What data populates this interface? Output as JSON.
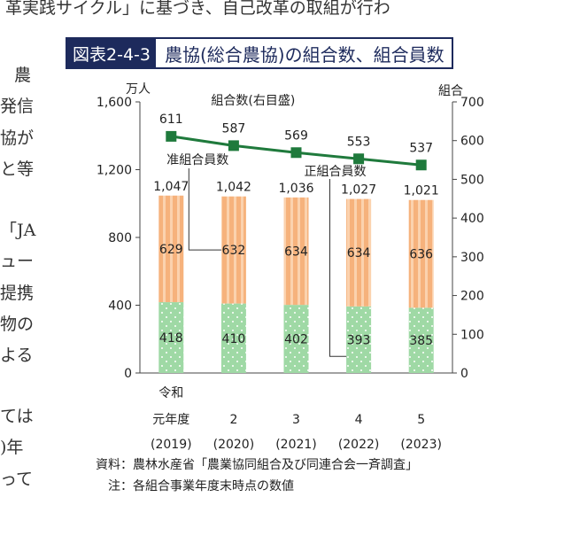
{
  "background_text": {
    "top_line": "革実践サイクル」に基づき、自己改革の取組が行わ",
    "left_fragments": [
      "農",
      "発信",
      "協が",
      "と等",
      "「JA",
      "ュー",
      "提携",
      "物の",
      "よる",
      "ては",
      ")年",
      "って"
    ]
  },
  "figure": {
    "label": "図表2-4-3",
    "title": "農協(総合農協)の組合数、組合員数"
  },
  "chart_data": {
    "type": "bar",
    "categories": [
      {
        "line1": "令和",
        "line2": "元年度",
        "line3": "(2019)"
      },
      {
        "line1": "",
        "line2": "2",
        "line3": "(2020)"
      },
      {
        "line1": "",
        "line2": "3",
        "line3": "(2021)"
      },
      {
        "line1": "",
        "line2": "4",
        "line3": "(2022)"
      },
      {
        "line1": "",
        "line2": "5",
        "line3": "(2023)"
      }
    ],
    "series": [
      {
        "name": "正組合員数",
        "kind": "stacked-bar",
        "color": "#9fd9a5",
        "pattern": "dots",
        "values": [
          418,
          410,
          402,
          393,
          385
        ]
      },
      {
        "name": "准組合員数",
        "kind": "stacked-bar",
        "color": "#f6b27c",
        "pattern": "stripes",
        "values": [
          629,
          632,
          634,
          634,
          636
        ]
      },
      {
        "name": "組合数(右目盛)",
        "kind": "line",
        "axis": "right",
        "color": "#1f7a3c",
        "values": [
          611,
          587,
          569,
          553,
          537
        ]
      }
    ],
    "totals": [
      1047,
      1042,
      1036,
      1027,
      1021
    ],
    "left_axis": {
      "unit": "万人",
      "ylim": [
        0,
        1600
      ],
      "ticks": [
        0,
        400,
        800,
        1200,
        1600
      ]
    },
    "right_axis": {
      "unit": "組合",
      "ylim": [
        0,
        700
      ],
      "ticks": [
        0,
        100,
        200,
        300,
        400,
        500,
        600,
        700
      ]
    },
    "annotations": {
      "line_label": "組合数(右目盛)",
      "quasi_label": "准組合員数",
      "regular_label": "正組合員数"
    },
    "grid": false
  },
  "notes": {
    "source": "資料：農林水産省「農業協同組合及び同連合会一斉調査」",
    "note": "注：各組合事業年度末時点の数値"
  }
}
